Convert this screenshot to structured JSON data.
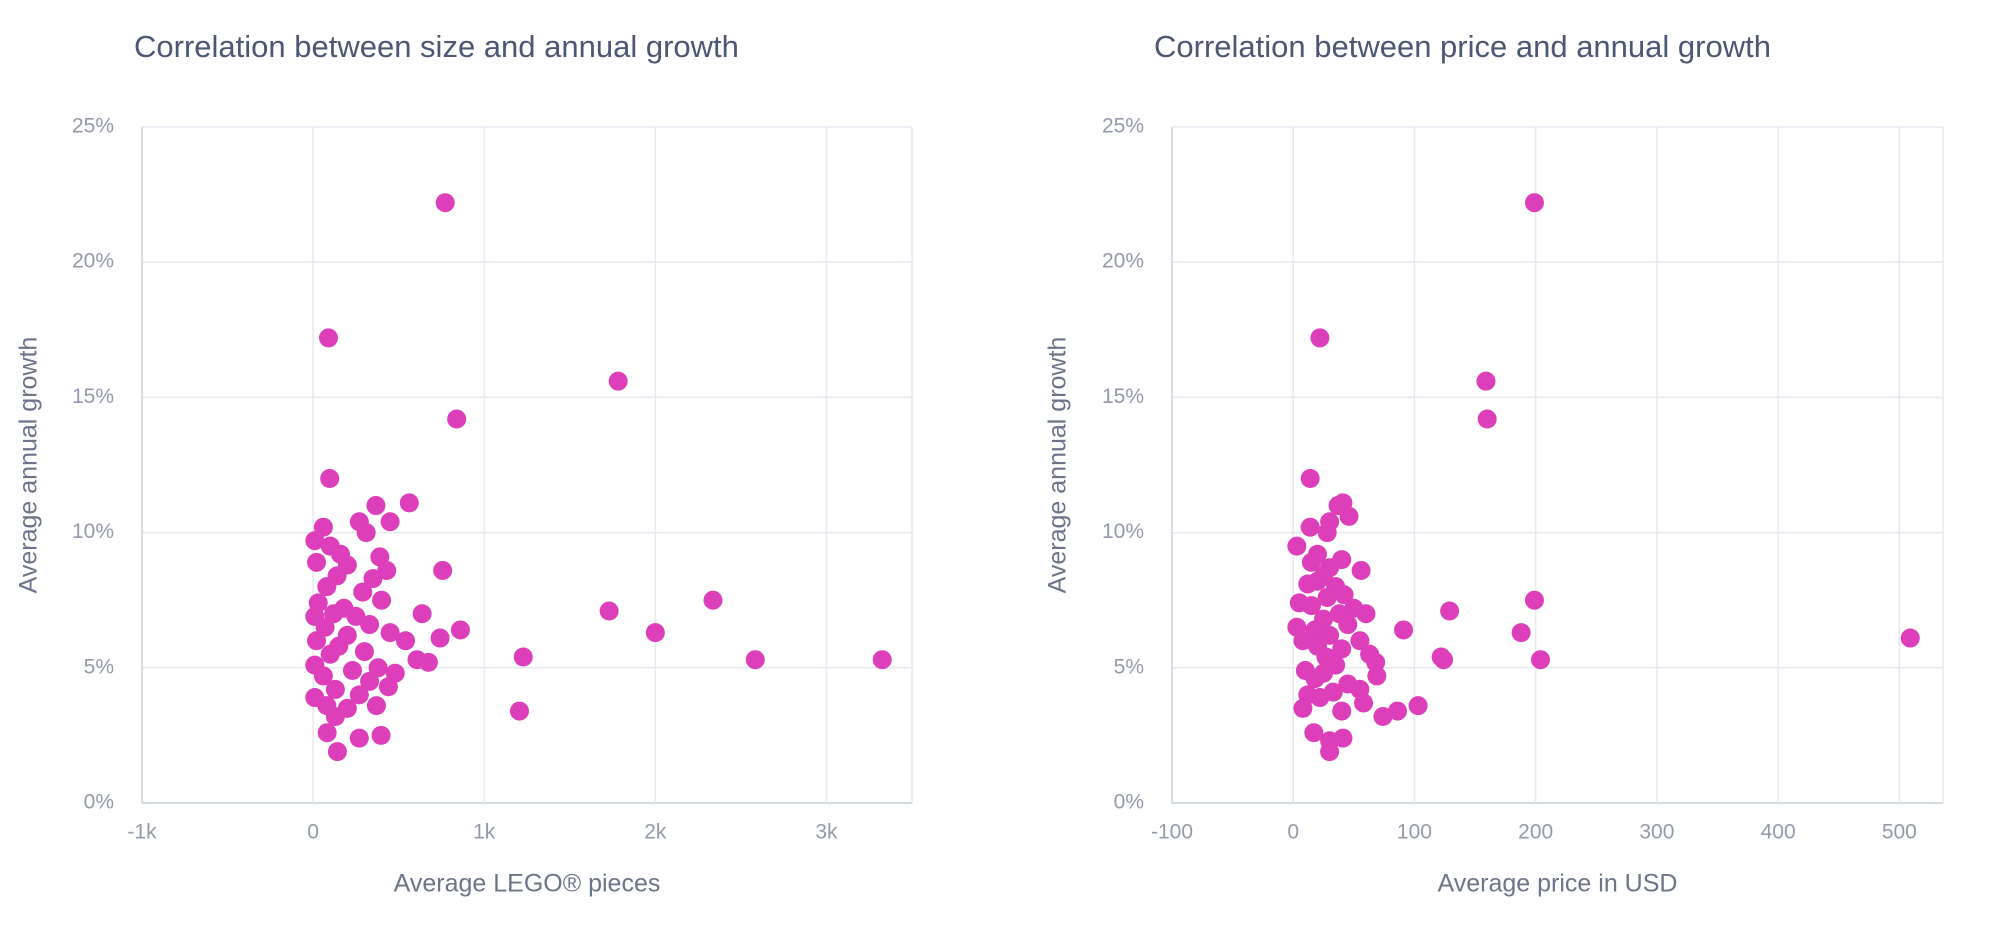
{
  "chart_data": [
    {
      "type": "scatter",
      "title": "Correlation between size and annual growth",
      "x_label": "Average LEGO® pieces",
      "y_label": "Average annual growth",
      "color": "#dc3fb9",
      "grid": true,
      "xlim": [
        -1000,
        3500
      ],
      "ylim": [
        0,
        25
      ],
      "xticks": [
        {
          "value": -1000,
          "label": "-1k"
        },
        0,
        {
          "value": 1000,
          "label": "1k"
        },
        {
          "value": 2000,
          "label": "2k"
        },
        {
          "value": 3000,
          "label": "3k"
        }
      ],
      "yticks": [
        {
          "value": 0,
          "label": "0%"
        },
        {
          "value": 5,
          "label": "5%"
        },
        {
          "value": 10,
          "label": "10%"
        },
        {
          "value": 15,
          "label": "15%"
        },
        {
          "value": 20,
          "label": "20%"
        },
        {
          "value": 25,
          "label": "25%"
        }
      ],
      "x": [
        772,
        90,
        1783,
        839,
        97,
        562,
        367,
        270,
        450,
        310,
        60,
        10,
        100,
        160,
        20,
        390,
        757,
        430,
        200,
        140,
        350,
        80,
        290,
        1730,
        2337,
        30,
        180,
        400,
        120,
        637,
        250,
        10,
        330,
        70,
        2000,
        861,
        742,
        200,
        450,
        540,
        20,
        150,
        300,
        100,
        1228,
        2584,
        3326,
        674,
        607,
        380,
        10,
        230,
        480,
        60,
        330,
        440,
        130,
        10,
        270,
        80,
        370,
        200,
        1206,
        130,
        82,
        270,
        397,
        142
      ],
      "y": [
        22.2,
        17.2,
        15.6,
        14.2,
        12,
        11.1,
        11,
        10.4,
        10.4,
        10,
        10.2,
        9.7,
        9.5,
        9.2,
        8.9,
        9.1,
        8.6,
        8.6,
        8.8,
        8.4,
        8.3,
        8,
        7.8,
        7.1,
        7.5,
        7.4,
        7.2,
        7.5,
        7,
        7,
        6.9,
        6.9,
        6.6,
        6.5,
        6.3,
        6.4,
        6.1,
        6.2,
        6.3,
        6,
        6,
        5.8,
        5.6,
        5.5,
        5.4,
        5.3,
        5.3,
        5.2,
        5.3,
        5,
        5.1,
        4.9,
        4.8,
        4.7,
        4.5,
        4.3,
        4.2,
        3.9,
        4,
        3.6,
        3.6,
        3.5,
        3.4,
        3.2,
        2.6,
        2.4,
        2.5,
        1.9
      ]
    },
    {
      "type": "scatter",
      "title": "Correlation between price and annual growth",
      "x_label": "Average price in USD",
      "y_label": "Average annual growth",
      "color": "#dc3fb9",
      "grid": true,
      "xlim": [
        -100,
        536
      ],
      "ylim": [
        0,
        25
      ],
      "xticks": [
        -100,
        0,
        100,
        200,
        300,
        400,
        500
      ],
      "yticks": [
        {
          "value": 0,
          "label": "0%"
        },
        {
          "value": 5,
          "label": "5%"
        },
        {
          "value": 10,
          "label": "10%"
        },
        {
          "value": 15,
          "label": "15%"
        },
        {
          "value": 20,
          "label": "20%"
        },
        {
          "value": 25,
          "label": "25%"
        }
      ],
      "x": [
        199,
        22,
        159,
        160,
        14,
        41,
        37,
        30,
        46,
        28,
        14,
        3,
        20,
        40,
        15,
        30,
        56,
        25,
        20,
        12,
        35,
        42,
        28,
        129,
        199,
        5,
        50,
        15,
        38,
        60,
        25,
        3,
        45,
        18,
        188,
        91,
        509,
        30,
        55,
        8,
        20,
        40,
        63,
        27,
        122,
        204,
        124,
        68,
        35,
        10,
        25,
        69,
        18,
        45,
        55,
        33,
        12,
        22,
        58,
        103,
        8,
        86,
        40,
        74,
        17,
        41,
        30,
        30
      ],
      "y": [
        22.2,
        17.2,
        15.6,
        14.2,
        12,
        11.1,
        11,
        10.4,
        10.6,
        10,
        10.2,
        9.5,
        9.2,
        9,
        8.9,
        8.7,
        8.6,
        8.4,
        8.2,
        8.1,
        8,
        7.7,
        7.6,
        7.1,
        7.5,
        7.4,
        7.2,
        7.3,
        7,
        7,
        6.8,
        6.5,
        6.6,
        6.4,
        6.3,
        6.4,
        6.1,
        6.2,
        6,
        6,
        5.8,
        5.7,
        5.5,
        5.4,
        5.4,
        5.3,
        5.3,
        5.2,
        5.1,
        4.9,
        4.8,
        4.7,
        4.6,
        4.4,
        4.2,
        4.1,
        4,
        3.9,
        3.7,
        3.6,
        3.5,
        3.4,
        3.4,
        3.2,
        2.6,
        2.4,
        2.3,
        1.9
      ]
    }
  ]
}
